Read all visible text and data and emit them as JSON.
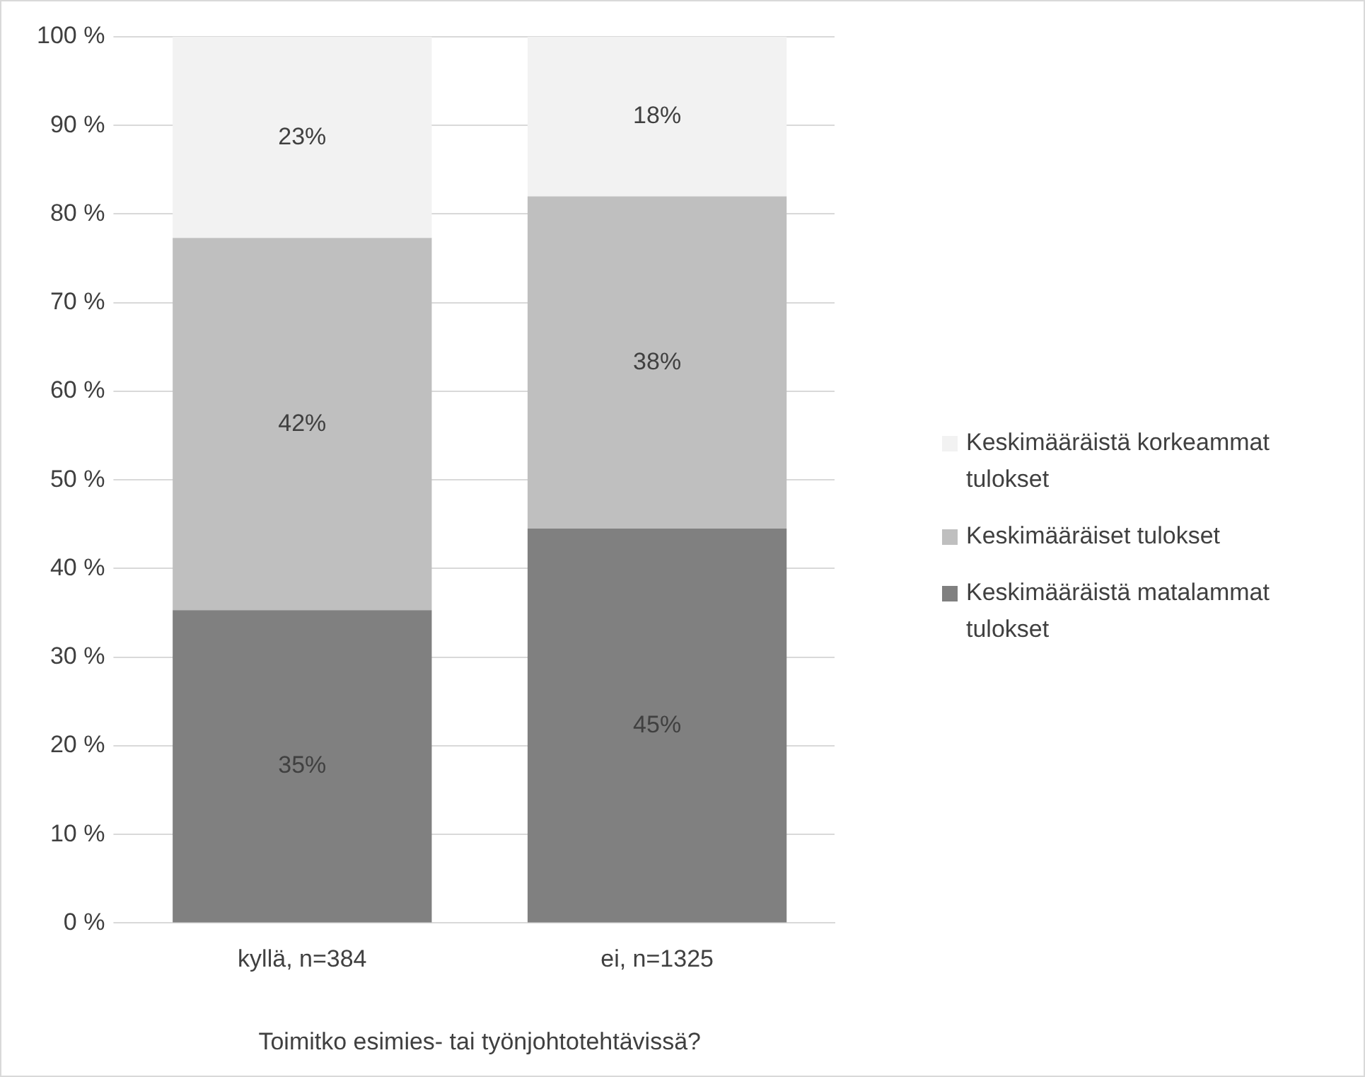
{
  "chart_data": {
    "type": "bar",
    "stacked": true,
    "xlabel": "Toimitko esimies- tai työnjohtotehtävissä?",
    "categories": [
      "kyllä, n=384",
      "ei, n=1325"
    ],
    "series": [
      {
        "name": "Keskimääräistä matalammat tulokset",
        "color": "#808080",
        "values": [
          35.3,
          44.5
        ],
        "value_labels": [
          "35%",
          "45%"
        ]
      },
      {
        "name": "Keskimääräiset tulokset",
        "color": "#bfbfbf",
        "values": [
          42,
          37.5
        ],
        "value_labels": [
          "42%",
          "38%"
        ]
      },
      {
        "name": "Keskimääräistä korkeammat tulokset",
        "color": "#f2f2f2",
        "values": [
          22.7,
          18
        ],
        "value_labels": [
          "23%",
          "18%"
        ]
      }
    ],
    "ylim": [
      0,
      100
    ],
    "yticks": [
      {
        "value": 0,
        "label": "0 %"
      },
      {
        "value": 10,
        "label": "10 %"
      },
      {
        "value": 20,
        "label": "20 %"
      },
      {
        "value": 30,
        "label": "30 %"
      },
      {
        "value": 40,
        "label": "40 %"
      },
      {
        "value": 50,
        "label": "50 %"
      },
      {
        "value": 60,
        "label": "60 %"
      },
      {
        "value": 70,
        "label": "70 %"
      },
      {
        "value": 80,
        "label": "80 %"
      },
      {
        "value": 90,
        "label": "90 %"
      },
      {
        "value": 100,
        "label": "100 %"
      }
    ],
    "grid": "y",
    "legend": "right"
  }
}
